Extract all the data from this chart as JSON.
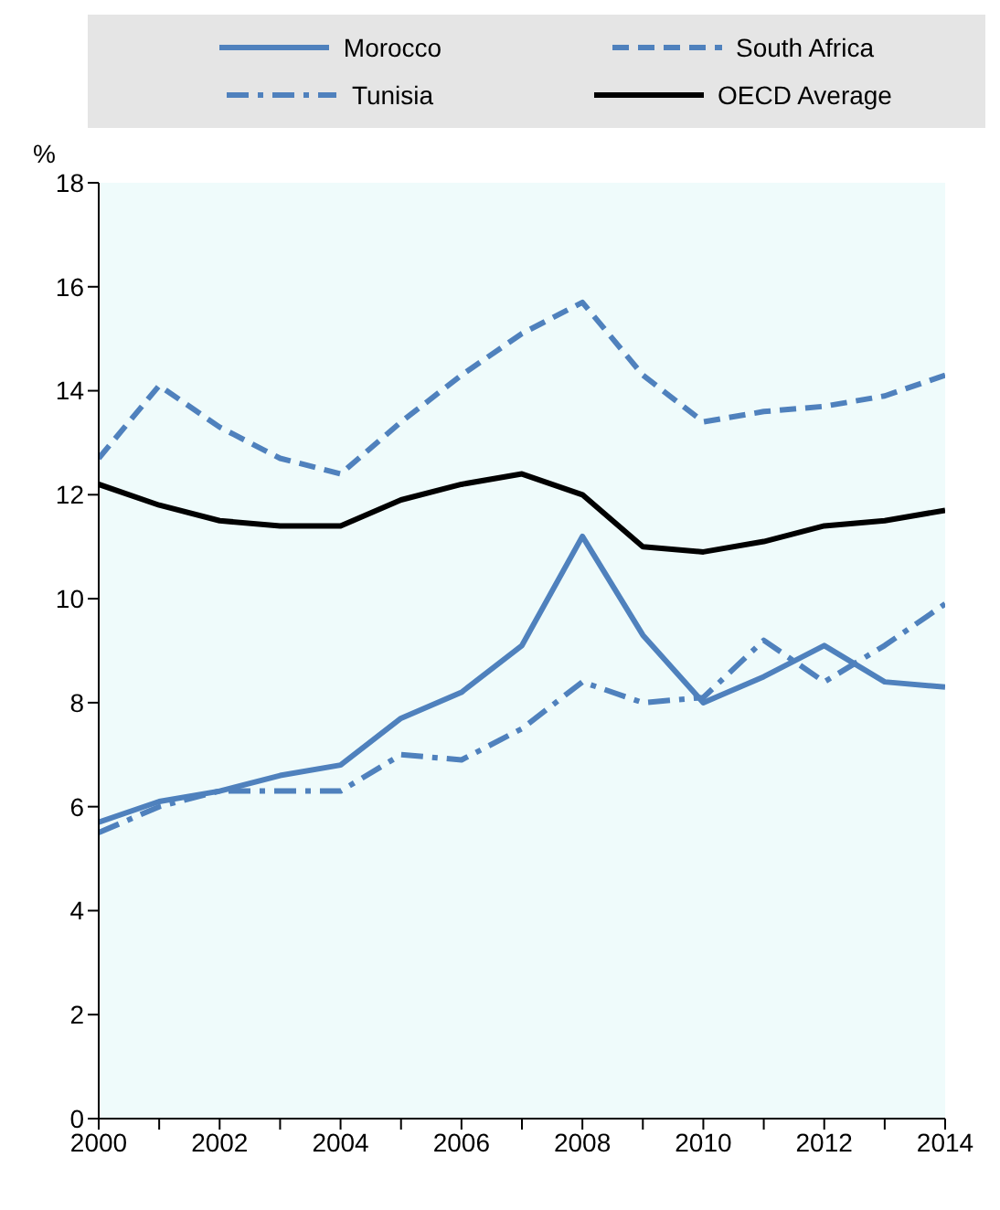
{
  "chart_data": {
    "type": "line",
    "ylabel": "%",
    "legend": "top",
    "x": [
      2000,
      2001,
      2002,
      2003,
      2004,
      2005,
      2006,
      2007,
      2008,
      2009,
      2010,
      2011,
      2012,
      2013,
      2014
    ],
    "xlim": [
      2000,
      2014
    ],
    "xticks": [
      2000,
      {
        "value": 2001,
        "label": null
      },
      2002,
      {
        "value": 2003,
        "label": null
      },
      2004,
      {
        "value": 2005,
        "label": null
      },
      2006,
      {
        "value": 2007,
        "label": null
      },
      2008,
      {
        "value": 2009,
        "label": null
      },
      2010,
      {
        "value": 2011,
        "label": null
      },
      2012,
      {
        "value": 2013,
        "label": null
      },
      2014
    ],
    "ylim": [
      0,
      18
    ],
    "yticks": [
      0,
      2,
      4,
      6,
      8,
      10,
      12,
      14,
      16,
      18
    ],
    "series": [
      {
        "name": "Morocco",
        "color": "#4f81bd",
        "line_style": "solid",
        "values": [
          5.7,
          6.1,
          6.3,
          6.6,
          6.8,
          7.7,
          8.2,
          9.1,
          11.2,
          9.3,
          8.0,
          8.5,
          9.1,
          8.4,
          8.3
        ]
      },
      {
        "name": "South Africa",
        "color": "#4f81bd",
        "line_style": "dashed",
        "values": [
          12.7,
          14.1,
          13.3,
          12.7,
          12.4,
          13.4,
          14.3,
          15.1,
          15.7,
          14.3,
          13.4,
          13.6,
          13.7,
          13.9,
          14.3
        ]
      },
      {
        "name": "Tunisia",
        "color": "#4f81bd",
        "line_style": "dashdot",
        "values": [
          5.5,
          6.0,
          6.3,
          6.3,
          6.3,
          7.0,
          6.9,
          7.5,
          8.4,
          8.0,
          8.1,
          9.2,
          8.4,
          9.1,
          9.9
        ]
      },
      {
        "name": "OECD Average",
        "color": "#000000",
        "line_style": "solid",
        "values": [
          12.2,
          11.8,
          11.5,
          11.4,
          11.4,
          11.9,
          12.2,
          12.4,
          12.0,
          11.0,
          10.9,
          11.1,
          11.4,
          11.5,
          11.7
        ]
      }
    ]
  }
}
